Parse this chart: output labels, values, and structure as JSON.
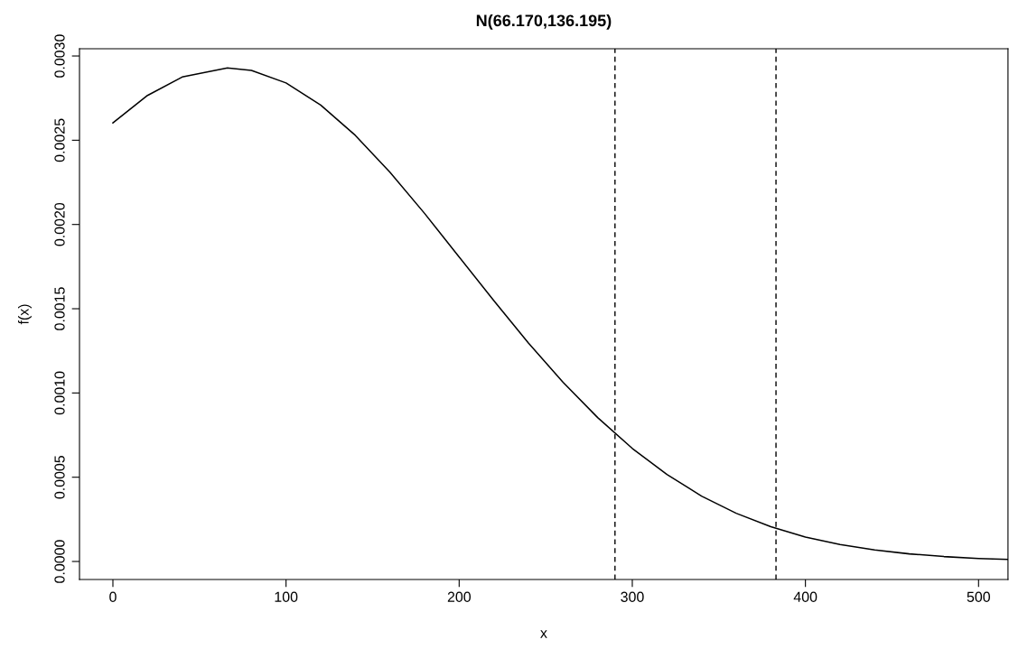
{
  "chart_data": {
    "type": "line",
    "title": "N(66.170,136.195)",
    "xlabel": "x",
    "ylabel": "f(x)",
    "x": [
      0,
      20,
      40,
      66.17,
      80,
      100,
      120,
      140,
      160,
      180,
      200,
      220,
      240,
      260,
      280,
      300,
      320,
      340,
      360,
      380,
      400,
      420,
      440,
      460,
      480,
      500,
      517
    ],
    "series": [
      {
        "color": "#000000",
        "values": [
          0.002603,
          0.002766,
          0.002875,
          0.002929,
          0.002914,
          0.00284,
          0.002709,
          0.002529,
          0.00231,
          0.002066,
          0.001807,
          0.001548,
          0.001297,
          0.001064,
          0.000854,
          0.000671,
          0.000516,
          0.000388,
          0.000286,
          0.000206,
          0.000145,
          0.0001,
          6.8e-05,
          4.5e-05,
          2.9e-05,
          1.8e-05,
          1.2e-05
        ]
      }
    ],
    "xlim": [
      -19.3,
      517
    ],
    "xticks": [
      0,
      100,
      200,
      300,
      400,
      500
    ],
    "ylim": [
      -0.000107,
      0.003043
    ],
    "yticks": [
      {
        "value": 0,
        "label": "0.0000"
      },
      {
        "value": 0.0005,
        "label": "0.0005"
      },
      {
        "value": 0.001,
        "label": "0.0010"
      },
      {
        "value": 0.0015,
        "label": "0.0015"
      },
      {
        "value": 0.002,
        "label": "0.0020"
      },
      {
        "value": 0.0025,
        "label": "0.0025"
      },
      {
        "value": 0.003,
        "label": "0.0030"
      }
    ],
    "ref_lines": [
      {
        "axis": "x",
        "value": 290,
        "color": "#000000",
        "line_style": "dashed"
      },
      {
        "axis": "x",
        "value": 383,
        "color": "#000000",
        "line_style": "dashed"
      }
    ],
    "grid": false,
    "legend": false,
    "marker": "none",
    "line_style": "solid"
  }
}
